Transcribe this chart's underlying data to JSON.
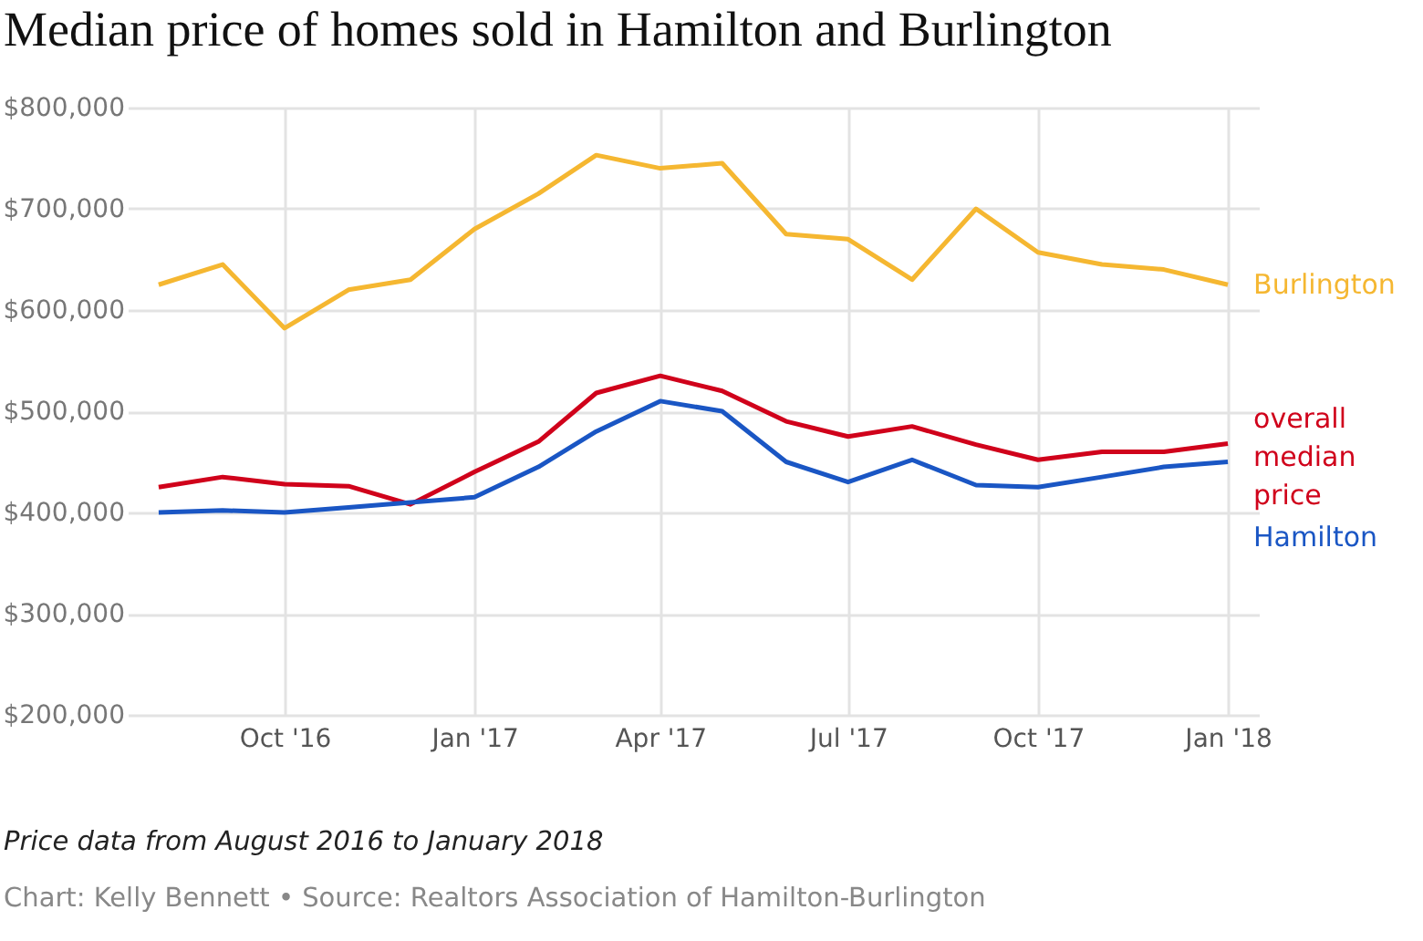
{
  "chart_data": {
    "type": "line",
    "title": "Median price of homes sold in Hamilton and Burlington",
    "annotations": [
      "Price data from August 2016 to January 2018",
      "Chart: Kelly Bennett • Source: Realtors Association of Hamilton-Burlington"
    ],
    "x": [
      "2016-08",
      "2016-09",
      "2016-10",
      "2016-11",
      "2016-12",
      "2017-01",
      "2017-02",
      "2017-03",
      "2017-04",
      "2017-05",
      "2017-06",
      "2017-07",
      "2017-08",
      "2017-09",
      "2017-10",
      "2017-11",
      "2017-12",
      "2018-01"
    ],
    "series": [
      {
        "name": "Burlington",
        "color": "#f5b731",
        "values": [
          625000,
          645000,
          582000,
          620000,
          630000,
          680000,
          715000,
          753000,
          740000,
          745000,
          675000,
          670000,
          630000,
          700000,
          657000,
          645000,
          640000,
          625000
        ]
      },
      {
        "name": "overall median price",
        "color": "#d0021b",
        "values": [
          425000,
          435000,
          428000,
          426000,
          408000,
          440000,
          470000,
          518000,
          535000,
          520000,
          490000,
          475000,
          485000,
          467000,
          452000,
          460000,
          460000,
          468000
        ]
      },
      {
        "name": "Hamilton",
        "color": "#1a56c4",
        "values": [
          400000,
          402000,
          400000,
          405000,
          410000,
          415000,
          445000,
          480000,
          510000,
          500000,
          450000,
          430000,
          452000,
          427000,
          425000,
          435000,
          445000,
          450000
        ]
      }
    ],
    "xlim": [
      "2016-07-17",
      "2018-01-16"
    ],
    "xticks": [
      {
        "value": "2016-10",
        "label": "Oct '16"
      },
      {
        "value": "2017-01",
        "label": "Jan '17"
      },
      {
        "value": "2017-04",
        "label": "Apr '17"
      },
      {
        "value": "2017-07",
        "label": "Jul '17"
      },
      {
        "value": "2017-10",
        "label": "Oct '17"
      },
      {
        "value": "2018-01",
        "label": "Jan '18"
      }
    ],
    "ylim": [
      200000,
      800000
    ],
    "yticks": [
      {
        "value": 200000,
        "label": "$200,000"
      },
      {
        "value": 300000,
        "label": "$300,000"
      },
      {
        "value": 400000,
        "label": "$400,000"
      },
      {
        "value": 500000,
        "label": "$500,000"
      },
      {
        "value": 600000,
        "label": "$600,000"
      },
      {
        "value": 700000,
        "label": "$700,000"
      },
      {
        "value": 800000,
        "label": "$800,000"
      }
    ],
    "grid": true,
    "legend": false,
    "line_style": "solid",
    "marker": "none"
  }
}
